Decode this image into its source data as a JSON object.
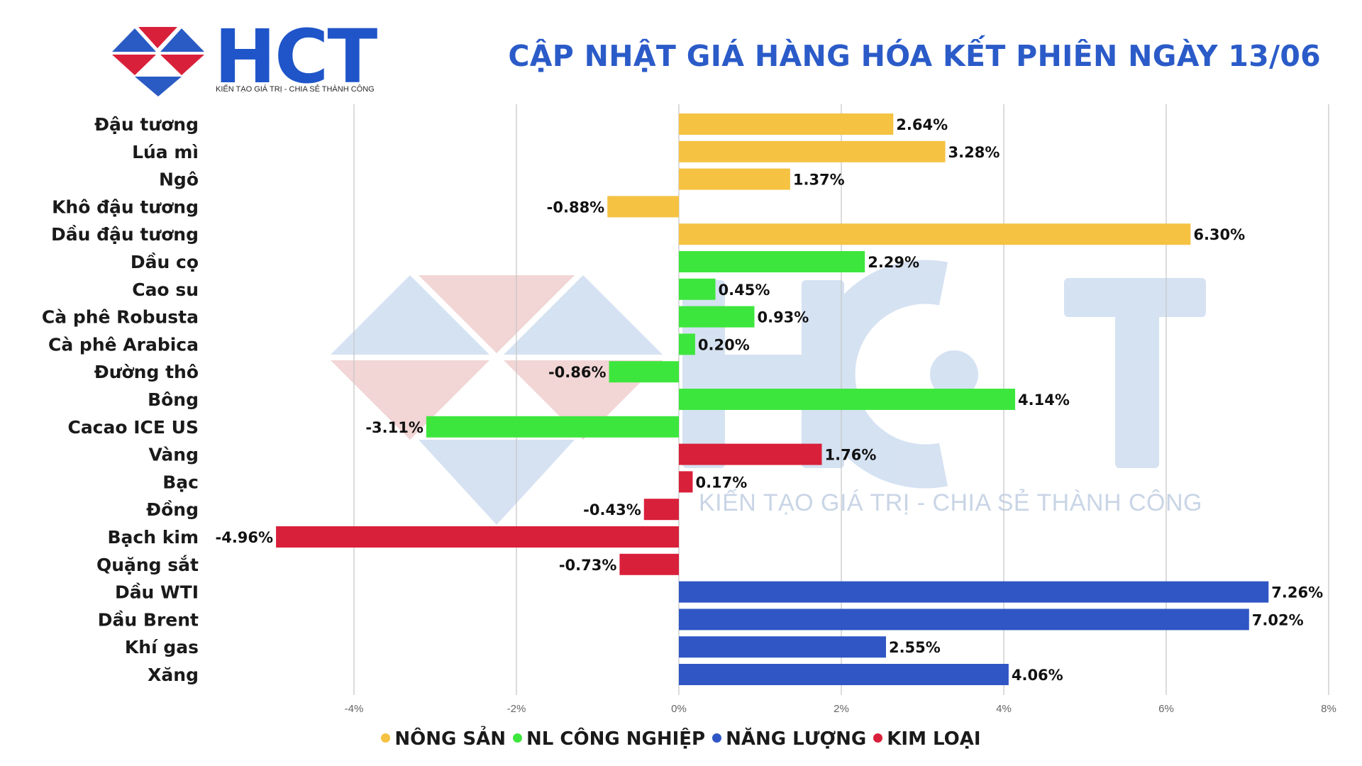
{
  "header": {
    "logo_text": "HCT",
    "logo_tagline": "KIẾN TẠO GIÁ TRỊ - CHIA SẺ THÀNH CÔNG",
    "title": "CẬP NHẬT GIÁ HÀNG HÓA KẾT PHIÊN NGÀY 13/06"
  },
  "watermark": {
    "text": "HCT",
    "tagline": "KIẾN TẠO GIÁ TRỊ - CHIA SẺ THÀNH CÔNG"
  },
  "colors": {
    "nong_san": "#f5c242",
    "nl_cong_nghiep": "#3de63d",
    "nang_luong": "#2f56c4",
    "kim_loai": "#d9203a",
    "title": "#2b5bc8"
  },
  "legend": [
    {
      "label": "NÔNG SẢN",
      "color": "#f5c242"
    },
    {
      "label": "NL CÔNG NGHIỆP",
      "color": "#3de63d"
    },
    {
      "label": "NĂNG LƯỢNG",
      "color": "#2f56c4"
    },
    {
      "label": "KIM LOẠI",
      "color": "#d9203a"
    }
  ],
  "chart_data": {
    "type": "bar",
    "orientation": "horizontal",
    "title": "CẬP NHẬT GIÁ HÀNG HÓA KẾT PHIÊN NGÀY 13/06",
    "xlabel": "",
    "ylabel": "",
    "xlim": [
      -5,
      8
    ],
    "x_ticks": [
      -4,
      -2,
      0,
      2,
      4,
      6,
      8
    ],
    "x_tick_labels": [
      "-4%",
      "-2%",
      "0%",
      "2%",
      "4%",
      "6%",
      "8%"
    ],
    "grid": "vertical",
    "legend_position": "bottom",
    "categories": [
      "Đậu tương",
      "Lúa mì",
      "Ngô",
      "Khô đậu tương",
      "Dầu đậu tương",
      "Dầu cọ",
      "Cao su",
      "Cà phê Robusta",
      "Cà phê Arabica",
      "Đường thô",
      "Bông",
      "Cacao ICE US",
      "Vàng",
      "Bạc",
      "Đồng",
      "Bạch kim",
      "Quặng sắt",
      "Dầu WTI",
      "Dầu Brent",
      "Khí gas",
      "Xăng"
    ],
    "values": [
      2.64,
      3.28,
      1.37,
      -0.88,
      6.3,
      2.29,
      0.45,
      0.93,
      0.2,
      -0.86,
      4.14,
      -3.11,
      1.76,
      0.17,
      -0.43,
      -4.96,
      -0.73,
      7.26,
      7.02,
      2.55,
      4.06
    ],
    "value_labels": [
      "2.64%",
      "3.28%",
      "1.37%",
      "-0.88%",
      "6.30%",
      "2.29%",
      "0.45%",
      "0.93%",
      "0.20%",
      "-0.86%",
      "4.14%",
      "-3.11%",
      "1.76%",
      "0.17%",
      "-0.43%",
      "-4.96%",
      "-0.73%",
      "7.26%",
      "7.02%",
      "2.55%",
      "4.06%"
    ],
    "groups": [
      "NÔNG SẢN",
      "NÔNG SẢN",
      "NÔNG SẢN",
      "NÔNG SẢN",
      "NÔNG SẢN",
      "NL CÔNG NGHIỆP",
      "NL CÔNG NGHIỆP",
      "NL CÔNG NGHIỆP",
      "NL CÔNG NGHIỆP",
      "NL CÔNG NGHIỆP",
      "NL CÔNG NGHIỆP",
      "NL CÔNG NGHIỆP",
      "KIM LOẠI",
      "KIM LOẠI",
      "KIM LOẠI",
      "KIM LOẠI",
      "KIM LOẠI",
      "NĂNG LƯỢNG",
      "NĂNG LƯỢNG",
      "NĂNG LƯỢNG",
      "NĂNG LƯỢNG"
    ]
  }
}
